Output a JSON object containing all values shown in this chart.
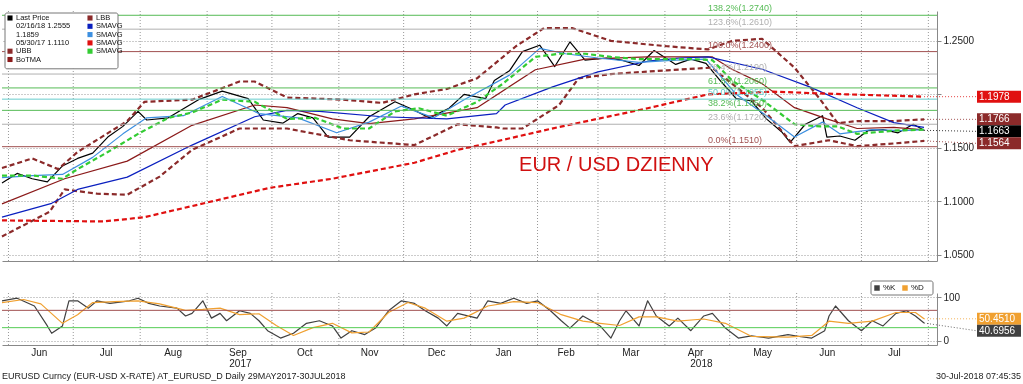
{
  "chart_data": [
    {
      "type": "line",
      "legend": "top left",
      "marker": "none",
      "grid": true,
      "tick_labels": "y",
      "xlim": [
        "2017-05-29",
        "2018-08-05"
      ],
      "ylim": [
        1.044,
        1.278
      ],
      "yticks": [
        {
          "value": 1.05,
          "label": "1.0500"
        },
        {
          "value": 1.1,
          "label": "1.1000"
        },
        {
          "value": 1.15,
          "label": "1.1500"
        },
        {
          "value": 1.2,
          "label": null
        },
        {
          "value": 1.25,
          "label": "1.2500"
        }
      ],
      "xticks": [
        {
          "value": "2017-06-01",
          "label": null
        },
        {
          "value": "2017-07-01",
          "label": null
        },
        {
          "value": "2017-08-01",
          "label": null
        },
        {
          "value": "2017-09-01",
          "label": null
        },
        {
          "value": "2017-10-01",
          "label": null
        },
        {
          "value": "2017-11-01",
          "label": null
        },
        {
          "value": "2017-12-01",
          "label": null
        },
        {
          "value": "2018-01-01",
          "label": null
        },
        {
          "value": "2018-02-01",
          "label": null
        },
        {
          "value": "2018-03-01",
          "label": null
        },
        {
          "value": "2018-04-01",
          "label": null
        },
        {
          "value": "2018-05-01",
          "label": null
        },
        {
          "value": "2018-06-01",
          "label": null
        },
        {
          "value": "2018-07-01",
          "label": null
        },
        {
          "value": "2018-08-01",
          "label": null
        }
      ],
      "series": [
        {
          "name": "Last Price",
          "color": "#000000",
          "line_style": "solid",
          "x": [
            "2017-05-29",
            "2017-06-05",
            "2017-06-12",
            "2017-06-19",
            "2017-06-26",
            "2017-07-03",
            "2017-07-10",
            "2017-07-17",
            "2017-07-24",
            "2017-07-31",
            "2017-08-04",
            "2017-08-14",
            "2017-08-28",
            "2017-09-08",
            "2017-09-20",
            "2017-09-27",
            "2017-10-06",
            "2017-10-13",
            "2017-10-20",
            "2017-10-27",
            "2017-11-06",
            "2017-11-15",
            "2017-11-27",
            "2017-12-05",
            "2017-12-13",
            "2017-12-22",
            "2017-12-29",
            "2018-01-08",
            "2018-01-12",
            "2018-01-19",
            "2018-01-25",
            "2018-02-02",
            "2018-02-09",
            "2018-02-16",
            "2018-02-23",
            "2018-03-05",
            "2018-03-12",
            "2018-03-20",
            "2018-03-27",
            "2018-04-06",
            "2018-04-13",
            "2018-04-20",
            "2018-04-27",
            "2018-05-04",
            "2018-05-11",
            "2018-05-18",
            "2018-05-25",
            "2018-05-29",
            "2018-06-05",
            "2018-06-13",
            "2018-06-15",
            "2018-06-21",
            "2018-06-28",
            "2018-07-04",
            "2018-07-11",
            "2018-07-18",
            "2018-07-25",
            "2018-07-30"
          ],
          "values": [
            1.117,
            1.126,
            1.121,
            1.118,
            1.133,
            1.14,
            1.145,
            1.16,
            1.17,
            1.184,
            1.176,
            1.178,
            1.195,
            1.203,
            1.196,
            1.176,
            1.173,
            1.182,
            1.178,
            1.16,
            1.16,
            1.179,
            1.193,
            1.186,
            1.178,
            1.187,
            1.2,
            1.196,
            1.213,
            1.222,
            1.24,
            1.246,
            1.226,
            1.249,
            1.232,
            1.234,
            1.232,
            1.227,
            1.241,
            1.228,
            1.233,
            1.229,
            1.212,
            1.196,
            1.194,
            1.177,
            1.165,
            1.155,
            1.172,
            1.18,
            1.16,
            1.161,
            1.157,
            1.166,
            1.167,
            1.164,
            1.172,
            1.1663
          ]
        },
        {
          "name": "UBB",
          "color": "#8b2a2a",
          "line_style": "dashed",
          "x": [
            "2017-05-29",
            "2017-06-12",
            "2017-06-24",
            "2017-07-03",
            "2017-07-26",
            "2017-08-03",
            "2017-08-25",
            "2017-09-16",
            "2017-09-23",
            "2017-10-08",
            "2017-10-21",
            "2017-11-03",
            "2017-11-21",
            "2017-12-06",
            "2017-12-21",
            "2018-01-04",
            "2018-01-22",
            "2018-02-04",
            "2018-02-17",
            "2018-03-07",
            "2018-04-02",
            "2018-04-21",
            "2018-05-02",
            "2018-05-16",
            "2018-05-31",
            "2018-06-12",
            "2018-06-20",
            "2018-06-29",
            "2018-07-16",
            "2018-07-30"
          ],
          "values": [
            1.131,
            1.14,
            1.13,
            1.146,
            1.175,
            1.193,
            1.195,
            1.212,
            1.212,
            1.197,
            1.196,
            1.195,
            1.192,
            1.2,
            1.205,
            1.215,
            1.245,
            1.262,
            1.262,
            1.25,
            1.245,
            1.242,
            1.25,
            1.252,
            1.225,
            1.195,
            1.173,
            1.175,
            1.175,
            1.1766
          ]
        },
        {
          "name": "BoTMA",
          "color": "#8b1a1a",
          "line_style": "solid",
          "x": [
            "2017-05-29",
            "2017-06-27",
            "2017-07-26",
            "2017-08-25",
            "2017-09-23",
            "2017-10-08",
            "2017-10-29",
            "2017-11-15",
            "2017-12-06",
            "2018-01-04",
            "2018-01-31",
            "2018-02-23",
            "2018-03-24",
            "2018-04-23",
            "2018-05-02",
            "2018-05-16",
            "2018-05-31",
            "2018-06-15",
            "2018-06-29",
            "2018-07-16",
            "2018-07-30"
          ],
          "values": [
            1.0975,
            1.121,
            1.1375,
            1.171,
            1.19,
            1.1875,
            1.177,
            1.1725,
            1.177,
            1.1875,
            1.223,
            1.233,
            1.235,
            1.235,
            1.2235,
            1.21,
            1.1875,
            1.177,
            1.168,
            1.169,
            1.1667
          ]
        },
        {
          "name": "LBB",
          "color": "#8b2a2a",
          "line_style": "dashed",
          "x": [
            "2017-05-29",
            "2017-06-20",
            "2017-06-27",
            "2017-07-12",
            "2017-07-26",
            "2017-08-10",
            "2017-08-25",
            "2017-09-16",
            "2017-10-08",
            "2017-11-06",
            "2017-12-06",
            "2017-12-26",
            "2018-01-13",
            "2018-01-16",
            "2018-01-25",
            "2018-02-11",
            "2018-02-20",
            "2018-03-07",
            "2018-04-02",
            "2018-04-23",
            "2018-04-24",
            "2018-05-16",
            "2018-05-31",
            "2018-06-16",
            "2018-06-29",
            "2018-07-16",
            "2018-07-30"
          ],
          "values": [
            1.067,
            1.09,
            1.111,
            1.107,
            1.106,
            1.123,
            1.148,
            1.168,
            1.168,
            1.157,
            1.1525,
            1.172,
            1.169,
            1.168,
            1.168,
            1.19,
            1.215,
            1.219,
            1.2225,
            1.225,
            1.223,
            1.1875,
            1.1515,
            1.157,
            1.1515,
            1.154,
            1.1564
          ]
        },
        {
          "name": "SMAVG",
          "color": "#0a1fbf",
          "line_style": "solid",
          "x": [
            "2017-05-29",
            "2017-06-21",
            "2017-07-03",
            "2017-07-26",
            "2017-08-25",
            "2017-09-23",
            "2017-10-08",
            "2017-10-23",
            "2017-11-21",
            "2017-12-21",
            "2018-01-13",
            "2018-01-17",
            "2018-02-08",
            "2018-03-01",
            "2018-03-24",
            "2018-04-08",
            "2018-04-21",
            "2018-05-16",
            "2018-06-07",
            "2018-06-29",
            "2018-07-16",
            "2018-07-30"
          ],
          "values": [
            1.085,
            1.098,
            1.111,
            1.1225,
            1.1525,
            1.179,
            1.185,
            1.184,
            1.179,
            1.177,
            1.182,
            1.19,
            1.207,
            1.221,
            1.231,
            1.234,
            1.235,
            1.2235,
            1.207,
            1.1875,
            1.1735,
            1.169
          ]
        },
        {
          "name": "SMAVG",
          "color": "#3c8fe0",
          "line_style": "solid",
          "x": [
            "2017-05-29",
            "2017-06-12",
            "2017-06-26",
            "2017-07-10",
            "2017-07-24",
            "2017-08-04",
            "2017-08-21",
            "2017-09-08",
            "2017-09-25",
            "2017-10-13",
            "2017-10-31",
            "2017-11-15",
            "2017-11-30",
            "2017-12-15",
            "2017-12-29",
            "2018-01-19",
            "2018-02-02",
            "2018-02-14",
            "2018-03-01",
            "2018-03-20",
            "2018-04-06",
            "2018-04-20",
            "2018-05-04",
            "2018-05-18",
            "2018-05-31",
            "2018-06-13",
            "2018-06-21",
            "2018-07-06",
            "2018-07-20",
            "2018-07-30"
          ],
          "values": [
            1.122,
            1.124,
            1.125,
            1.141,
            1.163,
            1.178,
            1.18,
            1.198,
            1.182,
            1.178,
            1.164,
            1.174,
            1.189,
            1.178,
            1.195,
            1.218,
            1.243,
            1.238,
            1.234,
            1.23,
            1.232,
            1.233,
            1.2,
            1.18,
            1.16,
            1.174,
            1.163,
            1.167,
            1.166,
            1.167
          ]
        },
        {
          "name": "SMAVG",
          "color": "#e01010",
          "line_style": "dashed",
          "x": [
            "2017-05-29",
            "2017-07-15",
            "2017-08-03",
            "2017-09-30",
            "2017-10-29",
            "2017-12-06",
            "2017-12-26",
            "2018-01-13",
            "2018-02-10",
            "2018-03-24",
            "2018-04-21",
            "2018-05-21",
            "2018-06-24",
            "2018-07-30"
          ],
          "values": [
            1.082,
            1.081,
            1.085,
            1.1125,
            1.121,
            1.136,
            1.148,
            1.156,
            1.169,
            1.187,
            1.2,
            1.2025,
            1.2,
            1.1978
          ]
        },
        {
          "name": "SMAVG",
          "color": "#33cc33",
          "line_style": "dashed",
          "x": [
            "2017-05-29",
            "2017-06-12",
            "2017-06-26",
            "2017-07-03",
            "2017-07-17",
            "2017-07-31",
            "2017-08-14",
            "2017-08-25",
            "2017-09-08",
            "2017-09-23",
            "2017-10-08",
            "2017-10-21",
            "2017-11-03",
            "2017-11-15",
            "2017-11-27",
            "2017-12-08",
            "2017-12-21",
            "2018-01-04",
            "2018-01-16",
            "2018-01-31",
            "2018-02-11",
            "2018-02-23",
            "2018-03-07",
            "2018-03-20",
            "2018-04-02",
            "2018-04-13",
            "2018-04-23",
            "2018-05-02",
            "2018-05-16",
            "2018-05-31",
            "2018-06-12",
            "2018-06-20",
            "2018-06-29",
            "2018-07-16",
            "2018-07-30"
          ],
          "values": [
            1.124,
            1.124,
            1.121,
            1.13,
            1.146,
            1.163,
            1.178,
            1.183,
            1.195,
            1.193,
            1.177,
            1.178,
            1.168,
            1.168,
            1.184,
            1.187,
            1.18,
            1.193,
            1.21,
            1.235,
            1.238,
            1.238,
            1.235,
            1.233,
            1.233,
            1.233,
            1.232,
            1.213,
            1.195,
            1.172,
            1.17,
            1.17,
            1.163,
            1.166,
            1.167
          ]
        }
      ],
      "ref_lines": [
        {
          "axis": "y",
          "value": 1.151,
          "label": "0.0%(1.1510)",
          "color": "#a05050",
          "line_style": "solid"
        },
        {
          "axis": "y",
          "value": 1.172,
          "label": "23.6%(1.1720)",
          "color": "#b0b0b0",
          "line_style": "solid"
        },
        {
          "axis": "y",
          "value": 1.185,
          "label": "38.2%(1.1850)",
          "color": "#55bb55",
          "line_style": "solid"
        },
        {
          "axis": "y",
          "value": 1.1955,
          "label": "50.0%(1.1955)",
          "color": "#66cccc",
          "line_style": "solid"
        },
        {
          "axis": "y",
          "value": 1.206,
          "label": "61.8%(1.2060)",
          "color": "#55bb55",
          "line_style": "solid"
        },
        {
          "axis": "y",
          "value": 1.219,
          "label": "76.4%(1.2190)",
          "color": "#b0b0b0",
          "line_style": "solid"
        },
        {
          "axis": "y",
          "value": 1.24,
          "label": "100.0%(1.2400)",
          "color": "#a05050",
          "line_style": "solid"
        },
        {
          "axis": "y",
          "value": 1.261,
          "label": "123.6%(1.2610)",
          "color": "#b0b0b0",
          "line_style": "solid"
        },
        {
          "axis": "y",
          "value": 1.274,
          "label": "138.2%(1.2740)",
          "color": "#55bb55",
          "line_style": "solid"
        }
      ],
      "annotations": [
        "02/16/18 1.2555",
        "1.1859",
        "05/30/17 1.1110",
        "EUR / USD DZIENNY",
        {
          "text": "1.1978",
          "x": "2018-07-30",
          "y": 1.1978
        },
        {
          "text": "1.1766",
          "x": "2018-07-30",
          "y": 1.1766
        },
        {
          "text": "1.1663",
          "x": "2018-07-30",
          "y": 1.1663
        },
        {
          "text": "1.1564",
          "x": "2018-07-30",
          "y": 1.1564
        }
      ]
    },
    {
      "type": "line",
      "legend": "top right",
      "marker": "none",
      "grid": true,
      "xlim": [
        "2017-05-29",
        "2018-08-05"
      ],
      "ylim": [
        -10,
        110
      ],
      "yticks": [
        0,
        100
      ],
      "xticks": [
        {
          "value": "2017-06-01",
          "label": null
        },
        {
          "value": "2017-06-15",
          "label": "Jun"
        },
        {
          "value": "2017-07-01",
          "label": null
        },
        {
          "value": "2017-07-16",
          "label": "Jul"
        },
        {
          "value": "2017-08-01",
          "label": null
        },
        {
          "value": "2017-08-16",
          "label": "Aug"
        },
        {
          "value": "2017-09-01",
          "label": null
        },
        {
          "value": "2017-09-15",
          "label": "Sep"
        },
        {
          "value": "2017-10-01",
          "label": null
        },
        {
          "value": "2017-10-16",
          "label": "Oct"
        },
        {
          "value": "2017-11-01",
          "label": null
        },
        {
          "value": "2017-11-15",
          "label": "Nov"
        },
        {
          "value": "2017-12-01",
          "label": null
        },
        {
          "value": "2017-12-16",
          "label": "Dec"
        },
        {
          "value": "2018-01-01",
          "label": null
        },
        {
          "value": "2018-01-16",
          "label": "Jan"
        },
        {
          "value": "2018-02-01",
          "label": null
        },
        {
          "value": "2018-02-14",
          "label": "Feb"
        },
        {
          "value": "2018-03-01",
          "label": null
        },
        {
          "value": "2018-03-16",
          "label": "Mar"
        },
        {
          "value": "2018-04-01",
          "label": null
        },
        {
          "value": "2018-04-15",
          "label": "Apr"
        },
        {
          "value": "2018-05-01",
          "label": null
        },
        {
          "value": "2018-05-16",
          "label": "May"
        },
        {
          "value": "2018-06-01",
          "label": null
        },
        {
          "value": "2018-06-15",
          "label": "Jun"
        },
        {
          "value": "2018-07-01",
          "label": null
        },
        {
          "value": "2018-07-16",
          "label": "Jul"
        },
        {
          "value": "2018-08-01",
          "label": null
        }
      ],
      "series": [
        {
          "name": "%K",
          "color": "#404040",
          "line_style": "solid",
          "x": [
            "2017-05-29",
            "2017-06-05",
            "2017-06-13",
            "2017-06-19",
            "2017-06-21",
            "2017-06-26",
            "2017-06-29",
            "2017-07-03",
            "2017-07-08",
            "2017-07-12",
            "2017-07-18",
            "2017-07-27",
            "2017-07-31",
            "2017-08-05",
            "2017-08-10",
            "2017-08-18",
            "2017-08-22",
            "2017-08-25",
            "2017-08-30",
            "2017-09-03",
            "2017-09-07",
            "2017-09-10",
            "2017-09-16",
            "2017-09-21",
            "2017-09-25",
            "2017-09-29",
            "2017-10-05",
            "2017-10-11",
            "2017-10-17",
            "2017-10-23",
            "2017-10-29",
            "2017-11-02",
            "2017-11-07",
            "2017-11-13",
            "2017-11-18",
            "2017-11-24",
            "2017-11-30",
            "2017-12-06",
            "2017-12-11",
            "2017-12-17",
            "2017-12-21",
            "2017-12-26",
            "2018-01-04",
            "2018-01-09",
            "2018-01-15",
            "2018-01-21",
            "2018-01-27",
            "2018-02-01",
            "2018-02-07",
            "2018-02-12",
            "2018-02-16",
            "2018-02-22",
            "2018-02-26",
            "2018-03-02",
            "2018-03-07",
            "2018-03-11",
            "2018-03-14",
            "2018-03-20",
            "2018-03-24",
            "2018-03-28",
            "2018-04-03",
            "2018-04-07",
            "2018-04-13",
            "2018-04-19",
            "2018-04-23",
            "2018-04-29",
            "2018-05-05",
            "2018-05-11",
            "2018-05-19",
            "2018-05-28",
            "2018-06-03",
            "2018-06-08",
            "2018-06-14",
            "2018-06-16",
            "2018-06-19",
            "2018-06-25",
            "2018-07-01",
            "2018-07-06",
            "2018-07-11",
            "2018-07-17",
            "2018-07-22",
            "2018-07-26",
            "2018-07-30"
          ],
          "values": [
            92,
            98,
            80,
            34,
            17,
            34,
            92,
            92,
            75,
            92,
            86,
            92,
            98,
            86,
            80,
            75,
            57,
            63,
            92,
            52,
            63,
            46,
            69,
            63,
            46,
            23,
            6,
            17,
            40,
            46,
            34,
            6,
            23,
            14,
            29,
            69,
            92,
            86,
            69,
            52,
            34,
            63,
            52,
            92,
            86,
            98,
            86,
            92,
            69,
            46,
            29,
            57,
            46,
            34,
            6,
            46,
            69,
            34,
            92,
            57,
            34,
            52,
            23,
            57,
            63,
            29,
            6,
            11,
            6,
            14,
            9,
            6,
            23,
            57,
            80,
            46,
            23,
            46,
            34,
            63,
            69,
            57,
            40.6956
          ]
        },
        {
          "name": "%D",
          "color": "#f0a030",
          "line_style": "solid",
          "x": [
            "2017-05-29",
            "2017-06-08",
            "2017-06-16",
            "2017-06-26",
            "2017-07-03",
            "2017-07-10",
            "2017-07-20",
            "2017-07-31",
            "2017-08-10",
            "2017-08-22",
            "2017-08-30",
            "2017-09-07",
            "2017-09-16",
            "2017-09-25",
            "2017-10-03",
            "2017-10-11",
            "2017-10-20",
            "2017-10-29",
            "2017-11-07",
            "2017-11-15",
            "2017-11-24",
            "2017-12-03",
            "2017-12-11",
            "2017-12-21",
            "2017-12-29",
            "2018-01-09",
            "2018-01-21",
            "2018-02-01",
            "2018-02-12",
            "2018-02-22",
            "2018-03-02",
            "2018-03-11",
            "2018-03-20",
            "2018-03-28",
            "2018-04-07",
            "2018-04-19",
            "2018-04-29",
            "2018-05-11",
            "2018-05-28",
            "2018-06-08",
            "2018-06-16",
            "2018-06-25",
            "2018-07-06",
            "2018-07-17",
            "2018-07-26",
            "2018-07-30"
          ],
          "values": [
            88,
            95,
            85,
            40,
            60,
            88,
            90,
            92,
            85,
            70,
            72,
            75,
            60,
            62,
            35,
            12,
            30,
            40,
            18,
            20,
            65,
            88,
            75,
            45,
            52,
            80,
            90,
            88,
            60,
            45,
            40,
            35,
            55,
            55,
            45,
            50,
            40,
            10,
            8,
            12,
            45,
            40,
            45,
            65,
            65,
            50.451
          ]
        }
      ],
      "ref_lines": [
        {
          "axis": "y",
          "value": 70,
          "label": null,
          "color": "#a05050",
          "line_style": "solid"
        },
        {
          "axis": "y",
          "value": 30,
          "label": null,
          "color": "#55cc55",
          "line_style": "solid"
        }
      ],
      "annotations": [
        "2017",
        "2018",
        {
          "text": "50.4510",
          "x": "2018-07-30",
          "y": 50.451
        },
        {
          "text": "40.6956",
          "x": "2018-07-30",
          "y": 40.6956
        },
        "EURUSD Curncy (EUR-USD X-RATE) AT_EURUSD_D  Daily 29MAY2017-30JUL2018",
        "30-Jul-2018 07:45:35"
      ]
    }
  ]
}
